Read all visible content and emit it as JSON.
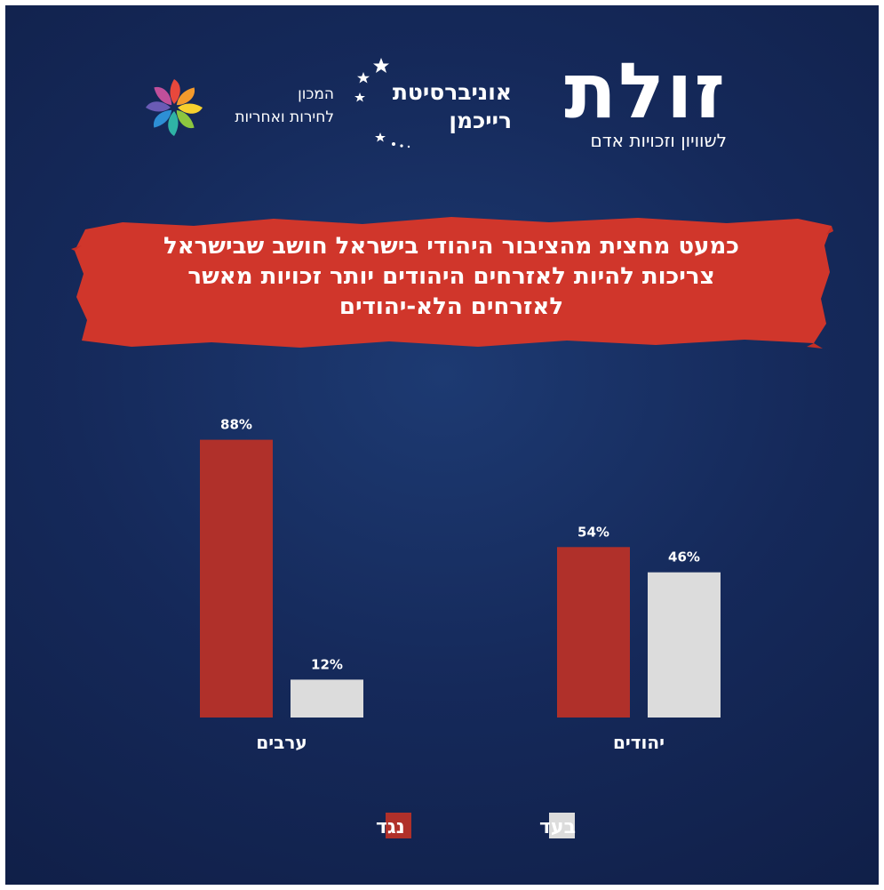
{
  "logos": {
    "zulat": {
      "name": "זולת",
      "tagline": "לשוויון וזכויות אדם"
    },
    "reichman": {
      "line1": "אוניברסיטת",
      "line2": "רייכמן"
    },
    "institute": {
      "line1": "המכון",
      "line2": "לחירות ואחריות"
    }
  },
  "title_lines": [
    "כמעט מחצית מהציבור היהודי בישראל חושב שבישראל",
    "צריכות להיות לאזרחים היהודים יותר זכויות מאשר",
    "לאזרחים הלא-יהודים"
  ],
  "colors": {
    "background": "#152a5a",
    "against": "#b0302a",
    "for": "#dcdcdc",
    "banner": "#d0362b",
    "text": "#ffffff"
  },
  "chart_data": {
    "type": "bar",
    "categories": [
      "ערבים",
      "יהודים"
    ],
    "series": [
      {
        "name": "נגד",
        "values": [
          88,
          54
        ],
        "labels": [
          "88%",
          "54%"
        ],
        "color": "#b0302a"
      },
      {
        "name": "בעד",
        "values": [
          12,
          46
        ],
        "labels": [
          "12%",
          "46%"
        ],
        "color": "#dcdcdc"
      }
    ],
    "ylim": [
      0,
      100
    ],
    "grid": false,
    "legend": "bottom-center"
  }
}
